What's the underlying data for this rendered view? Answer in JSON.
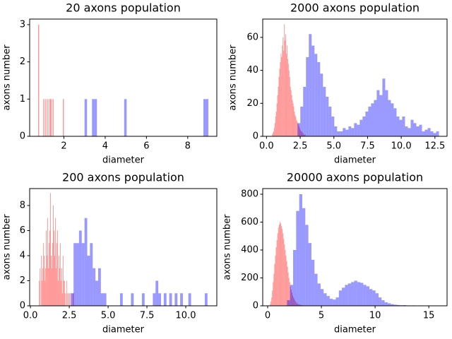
{
  "chart_data": [
    {
      "type": "histogram",
      "title": "20 axons population",
      "xlabel": "diameter",
      "ylabel": "axons number",
      "alpha": 0.4,
      "xlim": [
        0.34,
        9.41
      ],
      "ylim": [
        0,
        3.15
      ],
      "xticks": [
        2,
        4,
        6,
        8
      ],
      "yticks": [
        0,
        1,
        2,
        3
      ],
      "series": [
        {
          "color": "#ff0000",
          "bins": [
            0.75,
            0.8,
            0.85,
            0.9,
            0.95,
            1.0,
            1.05,
            1.1,
            1.15,
            1.2,
            1.25,
            1.3,
            1.35,
            1.4,
            1.45,
            1.5,
            1.55,
            1.6,
            1.65,
            1.7,
            1.75,
            1.8,
            1.85,
            1.9,
            1.95,
            2.0
          ],
          "values": [
            3,
            0,
            0,
            0,
            0,
            1,
            0,
            1,
            0,
            1,
            0,
            1,
            1,
            0,
            1,
            0,
            0,
            0,
            0,
            0,
            0,
            0,
            0,
            0,
            1
          ]
        },
        {
          "color": "#0000ff",
          "bins": [
            3.0,
            3.12,
            3.24,
            3.36,
            3.48,
            3.6,
            3.72,
            3.84,
            3.96,
            4.08,
            4.2,
            4.32,
            4.44,
            4.56,
            4.68,
            4.8,
            4.92,
            5.04,
            5.16,
            5.28,
            5.4,
            5.52,
            5.64,
            5.76,
            5.88,
            6.0,
            6.12,
            6.24,
            6.36,
            6.48,
            6.6,
            6.72,
            6.84,
            6.96,
            7.08,
            7.2,
            7.32,
            7.44,
            7.56,
            7.68,
            7.8,
            7.92,
            8.04,
            8.16,
            8.28,
            8.4,
            8.52,
            8.64,
            8.76,
            8.88,
            9.0
          ],
          "values": [
            1,
            0,
            0,
            1,
            1,
            0,
            0,
            0,
            0,
            0,
            0,
            0,
            0,
            0,
            0,
            0,
            1,
            0,
            0,
            0,
            0,
            0,
            0,
            0,
            0,
            0,
            0,
            0,
            0,
            0,
            0,
            0,
            0,
            0,
            0,
            0,
            0,
            0,
            0,
            0,
            0,
            0,
            0,
            0,
            0,
            0,
            0,
            0,
            1,
            1
          ]
        }
      ]
    },
    {
      "type": "histogram",
      "title": "2000 axons population",
      "xlabel": "diameter",
      "ylabel": "axons number",
      "alpha": 0.4,
      "xlim": [
        -0.28,
        13.4
      ],
      "ylim": [
        0,
        71.1
      ],
      "xticks": [
        {
          "value": 0,
          "label": "0.0"
        },
        2.5,
        {
          "value": 5,
          "label": "5.0"
        },
        7.5,
        {
          "value": 10,
          "label": "10.0"
        },
        12.5
      ],
      "yticks": [
        0,
        20,
        40,
        60
      ],
      "series": [
        {
          "color": "#ff0000",
          "bins": [
            0.4,
            0.45,
            0.5,
            0.55,
            0.6,
            0.65,
            0.7,
            0.75,
            0.8,
            0.85,
            0.9,
            0.95,
            1.0,
            1.05,
            1.1,
            1.15,
            1.2,
            1.25,
            1.3,
            1.35,
            1.4,
            1.45,
            1.5,
            1.55,
            1.6,
            1.65,
            1.7,
            1.75,
            1.8,
            1.85,
            1.9,
            1.95,
            2.0,
            2.05,
            2.1,
            2.15,
            2.2,
            2.25,
            2.3,
            2.35,
            2.4,
            2.45,
            2.5,
            2.55,
            2.6,
            2.65,
            2.7,
            2.75,
            2.8,
            2.85,
            2.9
          ],
          "values": [
            1,
            2,
            3,
            5,
            8,
            12,
            15,
            20,
            25,
            30,
            36,
            41,
            45,
            50,
            48,
            55,
            60,
            52,
            68,
            58,
            62,
            50,
            55,
            47,
            44,
            40,
            36,
            30,
            28,
            25,
            22,
            20,
            18,
            15,
            13,
            12,
            10,
            9,
            8,
            7,
            6,
            5,
            4,
            3,
            3,
            2,
            2,
            1,
            1,
            1
          ]
        },
        {
          "color": "#0000ff",
          "bins": [
            2.3,
            2.51,
            2.72,
            2.93,
            3.14,
            3.35,
            3.56,
            3.77,
            3.98,
            4.19,
            4.4,
            4.61,
            4.82,
            5.03,
            5.24,
            5.45,
            5.66,
            5.87,
            6.08,
            6.29,
            6.5,
            6.71,
            6.92,
            7.13,
            7.34,
            7.55,
            7.76,
            7.97,
            8.18,
            8.39,
            8.6,
            8.81,
            9.02,
            9.23,
            9.44,
            9.65,
            9.86,
            10.07,
            10.28,
            10.49,
            10.7,
            10.91,
            11.12,
            11.33,
            11.54,
            11.75,
            11.96,
            12.17,
            12.38,
            12.59,
            12.8
          ],
          "values": [
            8,
            18,
            30,
            48,
            62,
            55,
            50,
            45,
            38,
            30,
            24,
            18,
            12,
            6,
            3,
            3,
            5,
            4,
            6,
            5,
            8,
            7,
            10,
            12,
            15,
            18,
            20,
            22,
            28,
            25,
            35,
            28,
            22,
            20,
            17,
            12,
            10,
            12,
            6,
            5,
            10,
            8,
            6,
            7,
            3,
            4,
            5,
            3,
            2,
            3
          ]
        }
      ]
    },
    {
      "type": "histogram",
      "title": "200 axons population",
      "xlabel": "diameter",
      "ylabel": "axons number",
      "alpha": 0.4,
      "xlim": [
        -0.05,
        12.0
      ],
      "ylim": [
        0,
        9.35
      ],
      "xticks": [
        {
          "value": 0,
          "label": "0.0"
        },
        2.5,
        {
          "value": 5,
          "label": "5.0"
        },
        7.5,
        {
          "value": 10,
          "label": "10.0"
        }
      ],
      "yticks": [
        0,
        2,
        4,
        6,
        8
      ],
      "series": [
        {
          "color": "#ff0000",
          "bins": [
            0.55,
            0.595,
            0.64,
            0.685,
            0.73,
            0.775,
            0.82,
            0.865,
            0.91,
            0.955,
            1.0,
            1.045,
            1.09,
            1.135,
            1.18,
            1.225,
            1.27,
            1.315,
            1.36,
            1.405,
            1.45,
            1.495,
            1.54,
            1.585,
            1.63,
            1.675,
            1.72,
            1.765,
            1.81,
            1.855,
            1.9,
            1.945,
            1.99,
            2.035,
            2.08,
            2.125,
            2.17,
            2.215,
            2.26,
            2.305,
            2.35,
            2.395,
            2.44,
            2.485,
            2.53,
            2.575,
            2.62,
            2.665,
            2.71,
            2.755,
            2.8
          ],
          "values": [
            2,
            3,
            0,
            4,
            2,
            3,
            5,
            4,
            2,
            3,
            6,
            4,
            7,
            3,
            5,
            6,
            9,
            4,
            3,
            5,
            8,
            6,
            4,
            7,
            3,
            5,
            6,
            2,
            4,
            3,
            5,
            2,
            3,
            1,
            4,
            2,
            2,
            1,
            0,
            2,
            1,
            0,
            1,
            1,
            0,
            1,
            0,
            0,
            1,
            1
          ]
        },
        {
          "color": "#0000ff",
          "bins": [
            2.6,
            2.776,
            2.952,
            3.128,
            3.304,
            3.48,
            3.656,
            3.832,
            4.008,
            4.184,
            4.36,
            4.536,
            4.712,
            4.888,
            5.064,
            5.24,
            5.416,
            5.592,
            5.768,
            5.944,
            6.12,
            6.296,
            6.472,
            6.648,
            6.824,
            7.0,
            7.176,
            7.352,
            7.528,
            7.704,
            7.88,
            8.056,
            8.232,
            8.408,
            8.584,
            8.76,
            8.936,
            9.112,
            9.288,
            9.464,
            9.64,
            9.816,
            9.992,
            10.168,
            10.344,
            10.52,
            10.696,
            10.872,
            11.048,
            11.224,
            11.4
          ],
          "values": [
            1,
            5,
            5,
            6,
            5,
            7,
            4,
            5,
            3,
            2,
            3,
            1,
            1,
            0,
            0,
            0,
            0,
            0,
            1,
            0,
            0,
            0,
            1,
            0,
            0,
            0,
            1,
            0,
            0,
            0,
            1,
            2,
            1,
            0,
            1,
            0,
            1,
            0,
            1,
            0,
            1,
            0,
            0,
            1,
            0,
            0,
            0,
            0,
            0,
            1
          ]
        }
      ]
    },
    {
      "type": "histogram",
      "title": "20000 axons population",
      "xlabel": "diameter",
      "ylabel": "axons number",
      "alpha": 0.4,
      "xlim": [
        -0.46,
        16.7
      ],
      "ylim": [
        0,
        840.5
      ],
      "xticks": [
        0,
        5,
        10,
        15
      ],
      "yticks": [
        0,
        200,
        400,
        600,
        800
      ],
      "series": [
        {
          "color": "#ff0000",
          "bins": [
            0.2,
            0.27,
            0.34,
            0.41,
            0.48,
            0.55,
            0.62,
            0.69,
            0.76,
            0.83,
            0.9,
            0.97,
            1.04,
            1.11,
            1.18,
            1.25,
            1.32,
            1.39,
            1.46,
            1.53,
            1.6,
            1.67,
            1.74,
            1.81,
            1.88,
            1.95,
            2.02,
            2.09,
            2.16,
            2.23,
            2.3,
            2.37,
            2.44,
            2.51,
            2.58,
            2.65,
            2.72,
            2.79,
            2.86,
            2.93,
            3.0,
            3.07,
            3.14,
            3.21,
            3.28,
            3.35,
            3.42,
            3.49,
            3.56,
            3.63,
            3.7
          ],
          "values": [
            10,
            30,
            60,
            110,
            170,
            230,
            300,
            360,
            420,
            470,
            520,
            560,
            580,
            600,
            590,
            570,
            550,
            520,
            480,
            440,
            400,
            360,
            320,
            280,
            240,
            200,
            170,
            140,
            115,
            95,
            75,
            60,
            48,
            38,
            30,
            22,
            17,
            13,
            10,
            8,
            6,
            5,
            4,
            3,
            2,
            2,
            1,
            1,
            1,
            1
          ]
        },
        {
          "color": "#0000ff",
          "bins": [
            1.8,
            2.084,
            2.368,
            2.652,
            2.936,
            3.22,
            3.504,
            3.788,
            4.072,
            4.356,
            4.64,
            4.924,
            5.208,
            5.492,
            5.776,
            6.06,
            6.344,
            6.628,
            6.912,
            7.196,
            7.48,
            7.764,
            8.048,
            8.332,
            8.616,
            8.9,
            9.184,
            9.468,
            9.752,
            10.036,
            10.32,
            10.604,
            10.888,
            11.172,
            11.456,
            11.74,
            12.024,
            12.308,
            12.592,
            12.876,
            13.16,
            13.444,
            13.728,
            14.012,
            14.296,
            14.58,
            14.864,
            15.148,
            15.432,
            15.716,
            16.0
          ],
          "values": [
            40,
            150,
            400,
            680,
            800,
            700,
            580,
            450,
            330,
            230,
            160,
            120,
            90,
            70,
            50,
            45,
            60,
            110,
            130,
            150,
            160,
            170,
            180,
            170,
            165,
            150,
            140,
            120,
            110,
            90,
            60,
            40,
            25,
            18,
            12,
            8,
            6,
            4,
            5,
            3,
            2,
            3,
            1,
            2,
            1,
            1,
            0,
            1,
            0,
            1
          ]
        }
      ]
    }
  ]
}
